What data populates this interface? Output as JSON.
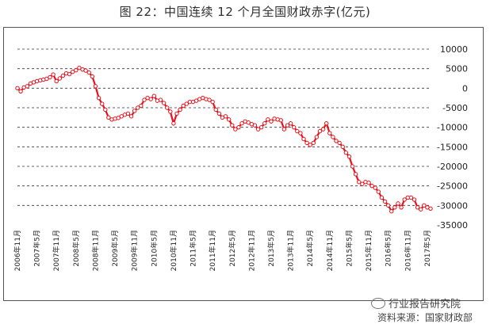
{
  "caption": "图 22：中国连续 12 个月全国财政赤字(亿元)",
  "watermark": "行业报告研究院",
  "source": "资料来源：国家财政部",
  "chart_data": {
    "type": "line",
    "title": "",
    "xlabel": "",
    "ylabel": "",
    "ylim": [
      -35000,
      10000
    ],
    "yticks": [
      10000,
      5000,
      0,
      -5000,
      -10000,
      -15000,
      -20000,
      -25000,
      -30000,
      -35000
    ],
    "y_axis_position": "right",
    "grid": "dashed horizontal",
    "line_color": "#e8101a",
    "x_tick_labels": [
      "2006年11月",
      "2007年5月",
      "2007年11月",
      "2008年5月",
      "2008年11月",
      "2009年5月",
      "2009年11月",
      "2010年5月",
      "2010年11月",
      "2011年5月",
      "2011年11月",
      "2012年5月",
      "2012年11月",
      "2013年5月",
      "2013年11月",
      "2014年5月",
      "2014年11月",
      "2015年5月",
      "2015年11月",
      "2016年5月",
      "2016年11月",
      "2017年5月"
    ],
    "x": [
      "2006-11",
      "2006-12",
      "2007-01",
      "2007-02",
      "2007-03",
      "2007-04",
      "2007-05",
      "2007-06",
      "2007-07",
      "2007-08",
      "2007-09",
      "2007-10",
      "2007-11",
      "2007-12",
      "2008-01",
      "2008-02",
      "2008-03",
      "2008-04",
      "2008-05",
      "2008-06",
      "2008-07",
      "2008-08",
      "2008-09",
      "2008-10",
      "2008-11",
      "2008-12",
      "2009-01",
      "2009-02",
      "2009-03",
      "2009-04",
      "2009-05",
      "2009-06",
      "2009-07",
      "2009-08",
      "2009-09",
      "2009-10",
      "2009-11",
      "2009-12",
      "2010-01",
      "2010-02",
      "2010-03",
      "2010-04",
      "2010-05",
      "2010-06",
      "2010-07",
      "2010-08",
      "2010-09",
      "2010-10",
      "2010-11",
      "2010-12",
      "2011-01",
      "2011-02",
      "2011-03",
      "2011-04",
      "2011-05",
      "2011-06",
      "2011-07",
      "2011-08",
      "2011-09",
      "2011-10",
      "2011-11",
      "2011-12",
      "2012-01",
      "2012-02",
      "2012-03",
      "2012-04",
      "2012-05",
      "2012-06",
      "2012-07",
      "2012-08",
      "2012-09",
      "2012-10",
      "2012-11",
      "2012-12",
      "2013-01",
      "2013-02",
      "2013-03",
      "2013-04",
      "2013-05",
      "2013-06",
      "2013-07",
      "2013-08",
      "2013-09",
      "2013-10",
      "2013-11",
      "2013-12",
      "2014-01",
      "2014-02",
      "2014-03",
      "2014-04",
      "2014-05",
      "2014-06",
      "2014-07",
      "2014-08",
      "2014-09",
      "2014-10",
      "2014-11",
      "2014-12",
      "2015-01",
      "2015-02",
      "2015-03",
      "2015-04",
      "2015-05",
      "2015-06",
      "2015-07",
      "2015-08",
      "2015-09",
      "2015-10",
      "2015-11",
      "2015-12",
      "2016-01",
      "2016-02",
      "2016-03",
      "2016-04",
      "2016-05",
      "2016-06",
      "2016-07",
      "2016-08",
      "2016-09",
      "2016-10",
      "2016-11",
      "2016-12",
      "2017-01",
      "2017-02",
      "2017-03",
      "2017-04",
      "2017-05",
      "2017-06"
    ],
    "values": [
      0,
      -800,
      200,
      500,
      1200,
      1500,
      1800,
      2000,
      2200,
      2400,
      2800,
      3500,
      1800,
      2500,
      3200,
      3800,
      3600,
      4200,
      4600,
      5200,
      4800,
      4500,
      4000,
      3000,
      500,
      -2500,
      -4000,
      -5500,
      -7500,
      -8000,
      -7800,
      -7600,
      -7200,
      -6800,
      -6500,
      -7200,
      -5800,
      -5000,
      -4500,
      -3000,
      -2500,
      -2800,
      -2000,
      -3200,
      -3000,
      -3800,
      -5000,
      -6000,
      -9000,
      -6500,
      -5500,
      -4500,
      -4000,
      -3500,
      -3500,
      -3200,
      -2800,
      -2500,
      -2800,
      -3000,
      -3500,
      -5500,
      -6500,
      -7500,
      -7200,
      -8000,
      -9500,
      -10500,
      -10000,
      -9000,
      -8500,
      -8800,
      -9200,
      -9500,
      -10500,
      -10000,
      -9000,
      -8000,
      -8500,
      -7800,
      -8000,
      -8200,
      -10500,
      -9500,
      -9000,
      -10000,
      -11000,
      -11500,
      -13000,
      -14000,
      -14500,
      -14000,
      -12500,
      -11000,
      -10500,
      -9000,
      -11500,
      -12500,
      -13500,
      -14000,
      -15000,
      -16500,
      -17500,
      -20000,
      -22000,
      -24000,
      -24500,
      -24000,
      -24200,
      -25000,
      -25500,
      -26500,
      -28000,
      -29000,
      -30000,
      -31500,
      -30500,
      -29500,
      -30500,
      -28500,
      -28000,
      -28000,
      -28500,
      -30500,
      -31000,
      -30000,
      -30500,
      -30800
    ]
  }
}
